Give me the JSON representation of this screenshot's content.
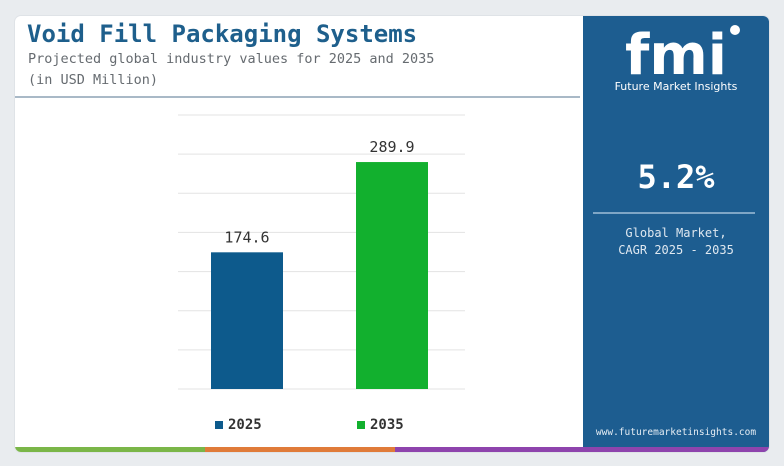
{
  "header": {
    "title": "Void Fill Packaging Systems",
    "subtitle_line1": "Projected global industry values for 2025 and 2035",
    "subtitle_line2": "(in USD Million)"
  },
  "chart_data": {
    "type": "bar",
    "categories": [
      "2025",
      "2035"
    ],
    "values": [
      174.6,
      289.9
    ],
    "value_labels": [
      "174.6",
      "289.9"
    ],
    "colors": [
      "#0d5a8c",
      "#12b02e"
    ],
    "ylim": [
      0,
      350
    ],
    "grid": true,
    "legend": "bottom",
    "legend_items": [
      {
        "label": "2025",
        "color": "#0d5a8c"
      },
      {
        "label": "2035",
        "color": "#12b02e"
      }
    ]
  },
  "sidebar": {
    "logo_text": "fmi",
    "logo_caption": "Future Market Insights",
    "cagr_value": "5.2%",
    "cagr_label_line1": "Global Market,",
    "cagr_label_line2": "CAGR 2025 - 2035",
    "website": "www.futuremarketinsights.com",
    "background": "#1d5d90"
  },
  "bottom_bar_colors": [
    "#7ab648",
    "#e07b39",
    "#8e44ad"
  ]
}
